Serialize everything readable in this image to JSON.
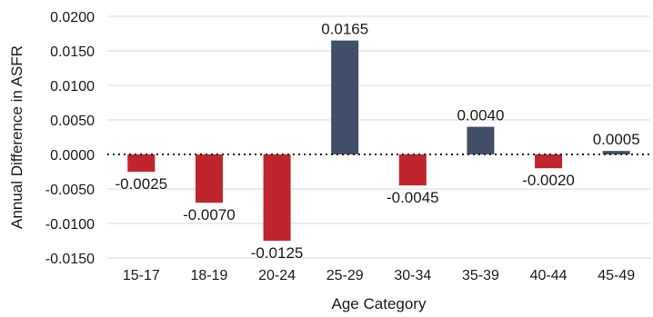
{
  "chart_data": {
    "type": "bar",
    "title": "",
    "xlabel": "Age Category",
    "ylabel": "Annual Difference in ASFR",
    "categories": [
      "15-17",
      "18-19",
      "20-24",
      "25-29",
      "30-34",
      "35-39",
      "40-44",
      "45-49"
    ],
    "values": [
      -0.0025,
      -0.007,
      -0.0125,
      0.0165,
      -0.0045,
      0.004,
      -0.002,
      0.0005
    ],
    "data_labels": [
      "-0.0025",
      "-0.0070",
      "-0.0125",
      "0.0165",
      "-0.0045",
      "0.0040",
      "-0.0020",
      "0.0005"
    ],
    "yticks": [
      "0.0200",
      "0.0150",
      "0.0100",
      "0.0050",
      "0.0000",
      "-0.0050",
      "-0.0100",
      "-0.0150"
    ],
    "ylim": [
      -0.015,
      0.02
    ],
    "grid": "horizontal",
    "zero_line": "dotted",
    "colors": {
      "positive": "#424f69",
      "negative": "#c0242c",
      "grid": "#d9d9d9",
      "zero": "#1a1a1a"
    }
  }
}
